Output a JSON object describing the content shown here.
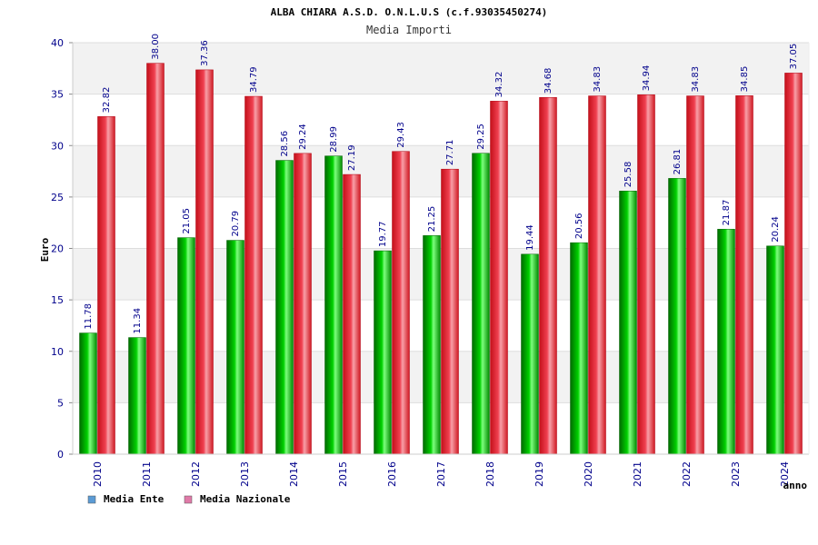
{
  "chart_data": {
    "type": "bar",
    "title": "ALBA CHIARA A.S.D. O.N.L.U.S (c.f.93035450274)",
    "subtitle": "Media Importi",
    "ylabel": "Euro",
    "xlabel": "anno",
    "ylim": [
      0,
      40
    ],
    "yticks": [
      0,
      5,
      10,
      15,
      20,
      25,
      30,
      35,
      40
    ],
    "grid": true,
    "legend_position": "bottom-left",
    "categories": [
      "2010",
      "2011",
      "2012",
      "2013",
      "2014",
      "2015",
      "2016",
      "2017",
      "2018",
      "2019",
      "2020",
      "2021",
      "2022",
      "2023",
      "2024"
    ],
    "series": [
      {
        "name": "Media Ente",
        "color": "#00b000",
        "legend_color": "#5b9bd5",
        "values": [
          11.78,
          11.34,
          21.05,
          20.79,
          28.56,
          28.99,
          19.77,
          21.25,
          29.25,
          19.44,
          20.56,
          25.58,
          26.81,
          21.87,
          20.24
        ],
        "labels": [
          "11.78",
          "11.34",
          "21.05",
          "20.79",
          "28.56",
          "28.99",
          "19.77",
          "21.25",
          "29.25",
          "19.44",
          "20.56",
          "25.58",
          "26.81",
          "21.87",
          "20.24"
        ]
      },
      {
        "name": "Media Nazionale",
        "color": "#e8202a",
        "legend_color": "#e07aa8",
        "values": [
          32.82,
          38.0,
          37.36,
          34.79,
          29.24,
          27.19,
          29.43,
          27.71,
          34.32,
          34.68,
          34.83,
          34.94,
          34.83,
          34.85,
          37.05
        ],
        "labels": [
          "32.82",
          "38.00",
          "37.36",
          "34.79",
          "29.24",
          "27.19",
          "29.43",
          "27.71",
          "34.32",
          "34.68",
          "34.83",
          "34.94",
          "34.83",
          "34.85",
          "37.05"
        ]
      }
    ]
  }
}
